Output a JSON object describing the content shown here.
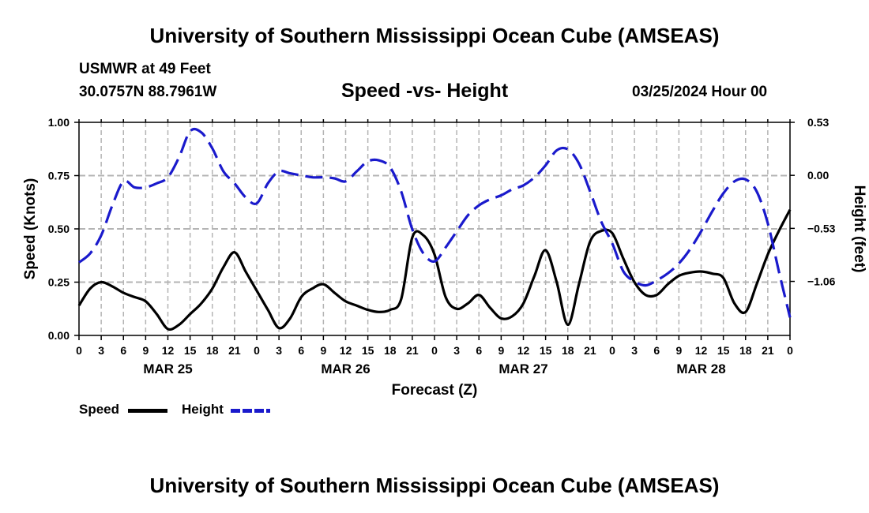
{
  "header": {
    "title": "University of Southern Mississippi Ocean Cube (AMSEAS)",
    "station": "USMWR at 49 Feet",
    "location": "30.0757N  88.7961W",
    "subtitle": "Speed -vs- Height",
    "datetime": "03/25/2024 Hour 00"
  },
  "footer": {
    "title": "University of Southern Mississippi Ocean Cube (AMSEAS)"
  },
  "legend": {
    "speed_label": "Speed",
    "height_label": "Height"
  },
  "colors": {
    "speed": "#000000",
    "height": "#1a1acc",
    "grid": "#b4b4b4"
  },
  "chart_data": {
    "type": "line",
    "title": "Speed -vs- Height",
    "xlabel": "Forecast (Z)",
    "ylabel": "Speed (Knots)",
    "y2label": "Height (feet)",
    "xlim": [
      0,
      96
    ],
    "ylim": [
      0,
      1
    ],
    "y2lim": [
      -1.6,
      0.53
    ],
    "grid": true,
    "x_ticks": [
      0,
      3,
      6,
      9,
      12,
      15,
      18,
      21,
      24,
      27,
      30,
      33,
      36,
      39,
      42,
      45,
      48,
      51,
      54,
      57,
      60,
      63,
      66,
      69,
      72,
      75,
      78,
      81,
      84,
      87,
      90,
      93,
      96
    ],
    "x_tick_labels": [
      "0",
      "3",
      "6",
      "9",
      "12",
      "15",
      "18",
      "21",
      "0",
      "3",
      "6",
      "9",
      "12",
      "15",
      "18",
      "21",
      "0",
      "3",
      "6",
      "9",
      "12",
      "15",
      "18",
      "21",
      "0",
      "3",
      "6",
      "9",
      "12",
      "15",
      "18",
      "21",
      "0"
    ],
    "day_labels": [
      {
        "x": 12,
        "label": "MAR 25"
      },
      {
        "x": 36,
        "label": "MAR 26"
      },
      {
        "x": 60,
        "label": "MAR 27"
      },
      {
        "x": 84,
        "label": "MAR 28"
      }
    ],
    "y_ticks": [
      0,
      0.25,
      0.5,
      0.75,
      1.0
    ],
    "y_tick_labels": [
      "0.00",
      "0.25",
      "0.50",
      "0.75",
      "1.00"
    ],
    "y2_ticks": [
      0.53,
      0,
      -0.53,
      -1.06
    ],
    "y2_tick_labels": [
      "0.53",
      "0.00",
      "−0.53",
      "−1.06"
    ],
    "series": [
      {
        "name": "Speed",
        "axis": "left",
        "style": "solid",
        "x": [
          0,
          1.5,
          3,
          4.5,
          6,
          7.5,
          9,
          10.5,
          12,
          13.5,
          15,
          16.5,
          18,
          19.5,
          21,
          22.5,
          24,
          25.5,
          27,
          28.5,
          30,
          31.5,
          33,
          34.5,
          36,
          37.5,
          39,
          40.5,
          42,
          43.5,
          45,
          46.5,
          48,
          49.5,
          51,
          52.5,
          54,
          55.5,
          57,
          58.5,
          60,
          61.5,
          63,
          64.5,
          66,
          67.5,
          69,
          70.5,
          72,
          73.5,
          75,
          76.5,
          78,
          79.5,
          81,
          82.5,
          84,
          85.5,
          87,
          88.5,
          90,
          91.5,
          93,
          94.5,
          96
        ],
        "values": [
          0.14,
          0.22,
          0.25,
          0.23,
          0.2,
          0.18,
          0.16,
          0.1,
          0.03,
          0.05,
          0.1,
          0.15,
          0.22,
          0.32,
          0.39,
          0.3,
          0.21,
          0.12,
          0.035,
          0.08,
          0.18,
          0.22,
          0.24,
          0.2,
          0.16,
          0.14,
          0.12,
          0.11,
          0.12,
          0.17,
          0.46,
          0.47,
          0.38,
          0.18,
          0.125,
          0.15,
          0.19,
          0.13,
          0.08,
          0.09,
          0.15,
          0.28,
          0.4,
          0.25,
          0.05,
          0.24,
          0.44,
          0.49,
          0.48,
          0.36,
          0.25,
          0.19,
          0.19,
          0.24,
          0.28,
          0.295,
          0.3,
          0.29,
          0.27,
          0.15,
          0.11,
          0.24,
          0.38,
          0.49,
          0.59
        ]
      },
      {
        "name": "Height",
        "axis": "right",
        "style": "dashed",
        "x": [
          0,
          1.5,
          3,
          4.5,
          6,
          7.5,
          9,
          10.5,
          12,
          13.5,
          15,
          16.5,
          18,
          19.5,
          21,
          22.5,
          24,
          25.5,
          27,
          28.5,
          30,
          31.5,
          33,
          34.5,
          36,
          37.5,
          39,
          40.5,
          42,
          43.5,
          45,
          46.5,
          48,
          49.5,
          51,
          52.5,
          54,
          55.5,
          57,
          58.5,
          60,
          61.5,
          63,
          64.5,
          66,
          67.5,
          69,
          70.5,
          72,
          73.5,
          75,
          76.5,
          78,
          79.5,
          81,
          82.5,
          84,
          85.5,
          87,
          88.5,
          90,
          91.5,
          93,
          94.5,
          96
        ],
        "values": [
          -0.87,
          -0.78,
          -0.6,
          -0.3,
          -0.06,
          -0.12,
          -0.12,
          -0.08,
          -0.02,
          0.18,
          0.44,
          0.43,
          0.27,
          0.04,
          -0.08,
          -0.22,
          -0.28,
          -0.08,
          0.04,
          0.02,
          0.0,
          -0.02,
          -0.02,
          -0.03,
          -0.06,
          0.04,
          0.14,
          0.15,
          0.08,
          -0.16,
          -0.54,
          -0.78,
          -0.86,
          -0.72,
          -0.56,
          -0.4,
          -0.3,
          -0.24,
          -0.2,
          -0.14,
          -0.1,
          -0.02,
          0.1,
          0.25,
          0.26,
          0.12,
          -0.16,
          -0.46,
          -0.68,
          -0.96,
          -1.06,
          -1.1,
          -1.05,
          -0.98,
          -0.88,
          -0.74,
          -0.56,
          -0.36,
          -0.18,
          -0.06,
          -0.04,
          -0.16,
          -0.48,
          -0.96,
          -1.42
        ]
      }
    ]
  }
}
